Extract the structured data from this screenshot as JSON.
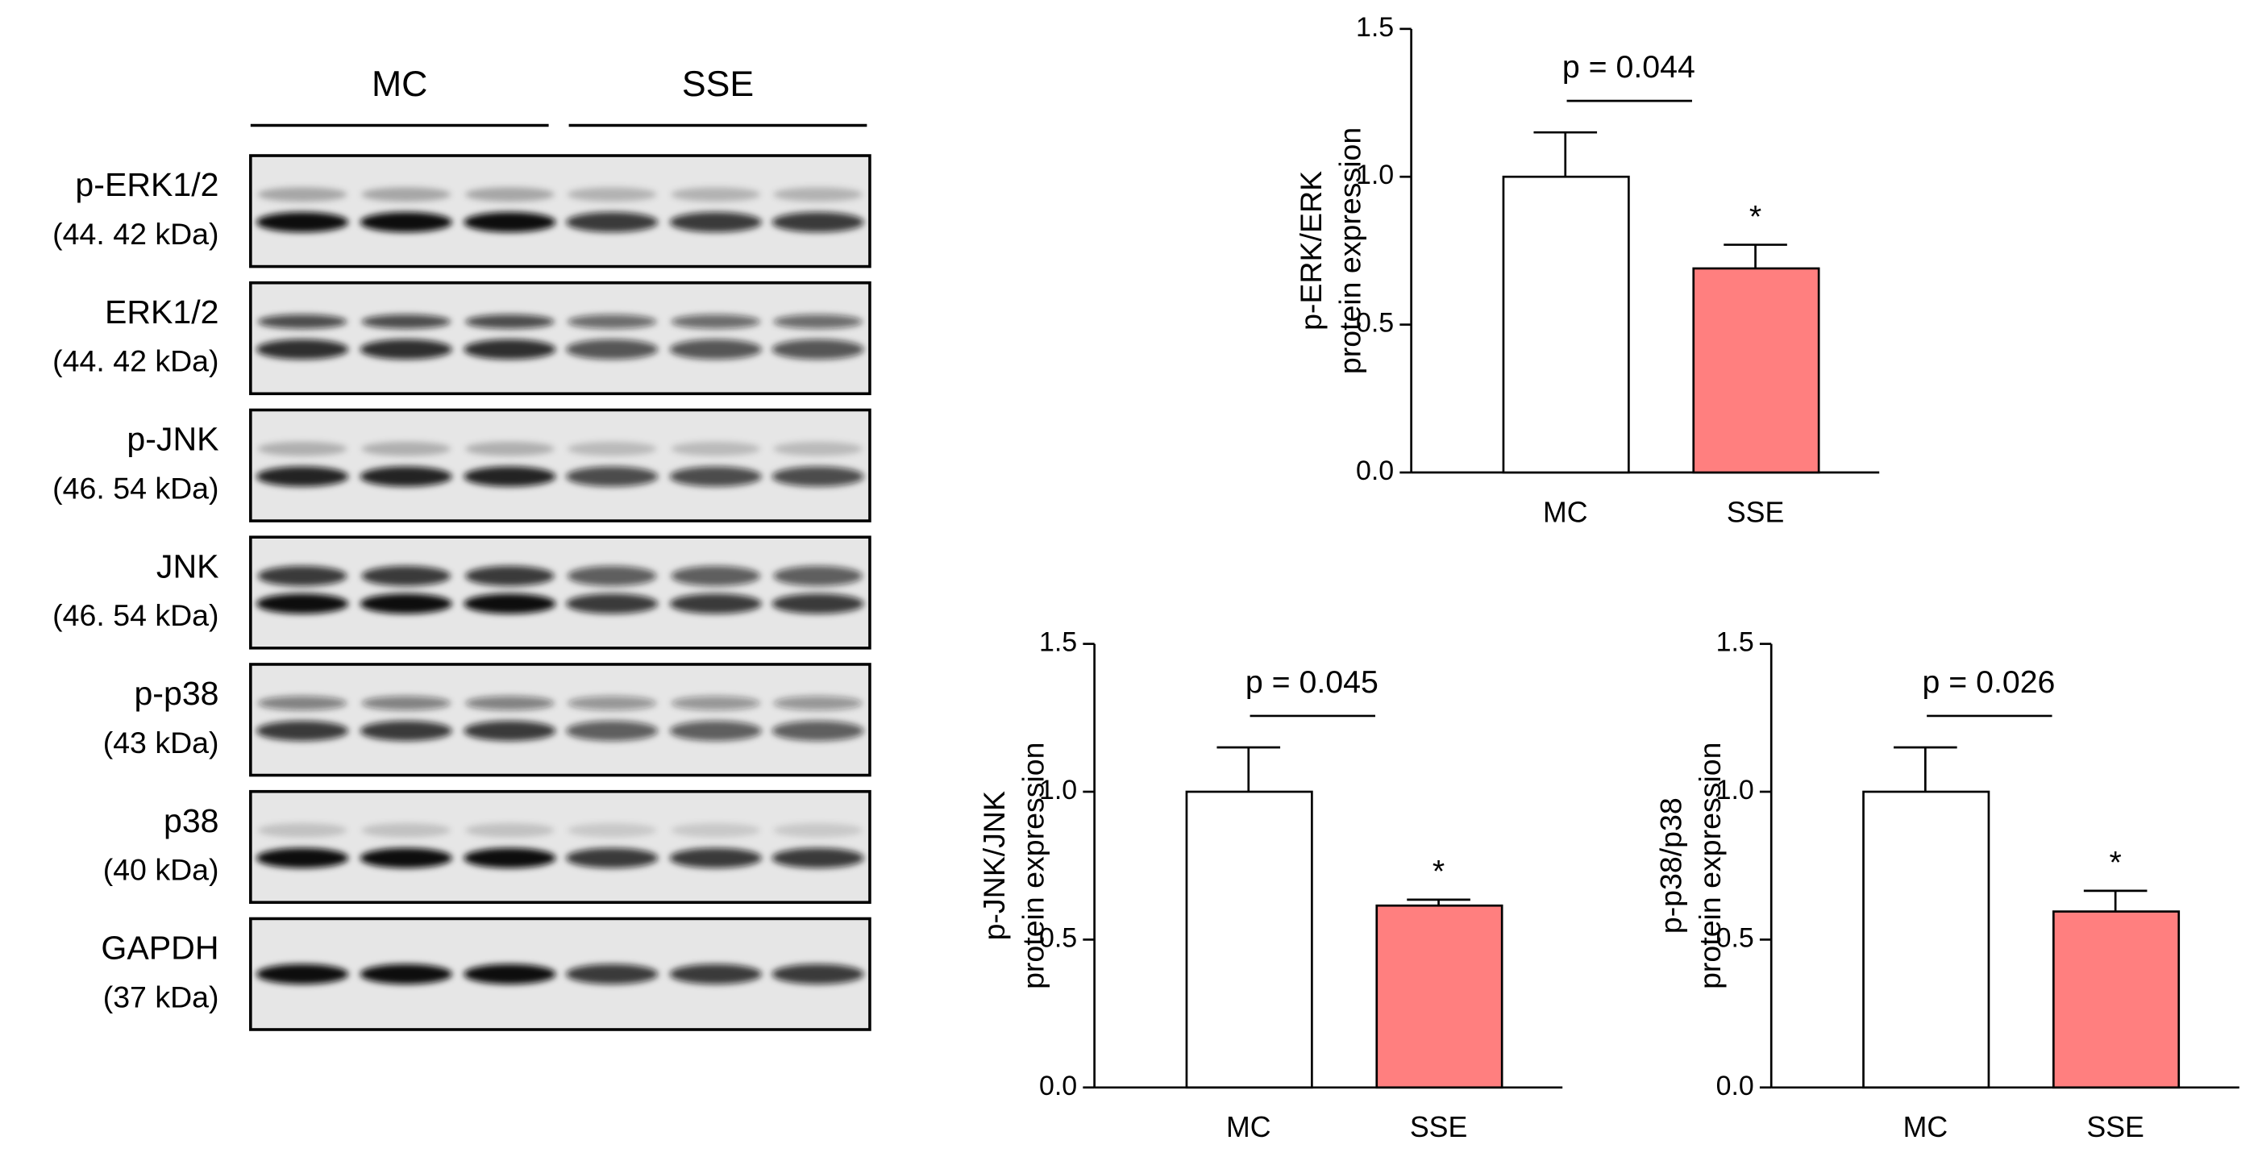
{
  "blot": {
    "groups": [
      "MC",
      "SSE"
    ],
    "rows": [
      {
        "name": "p-ERK1/2",
        "size": "(44. 42 kDa)"
      },
      {
        "name": "ERK1/2",
        "size": "(44. 42 kDa)"
      },
      {
        "name": "p-JNK",
        "size": "(46. 54 kDa)"
      },
      {
        "name": "JNK",
        "size": "(46. 54 kDa)"
      },
      {
        "name": "p-p38",
        "size": "(43 kDa)"
      },
      {
        "name": "p38",
        "size": "(40 kDa)"
      },
      {
        "name": "GAPDH",
        "size": "(37 kDa)"
      }
    ]
  },
  "chart_data": [
    {
      "type": "bar",
      "ylabel": [
        "p-ERK/ERK",
        "protein expression"
      ],
      "categories": [
        "MC",
        "SSE"
      ],
      "values": [
        1.0,
        0.69
      ],
      "errors": [
        0.15,
        0.08
      ],
      "colors": [
        "#ffffff",
        "#ff7f7f"
      ],
      "ylim": [
        0,
        1.5
      ],
      "yticks": [
        {
          "value": 0,
          "label": "0.0"
        },
        {
          "value": 0.5,
          "label": "0.5"
        },
        {
          "value": 1,
          "label": "1.0"
        },
        {
          "value": 1.5,
          "label": "1.5"
        }
      ],
      "annotation": "p = 0.044",
      "marker": "*"
    },
    {
      "type": "bar",
      "ylabel": [
        "p-JNK/JNK",
        "protein expression"
      ],
      "categories": [
        "MC",
        "SSE"
      ],
      "values": [
        1.0,
        0.615
      ],
      "errors": [
        0.15,
        0.02
      ],
      "colors": [
        "#ffffff",
        "#ff7f7f"
      ],
      "ylim": [
        0,
        1.5
      ],
      "yticks": [
        {
          "value": 0,
          "label": "0.0"
        },
        {
          "value": 0.5,
          "label": "0.5"
        },
        {
          "value": 1,
          "label": "1.0"
        },
        {
          "value": 1.5,
          "label": "1.5"
        }
      ],
      "annotation": "p = 0.045",
      "marker": "*"
    },
    {
      "type": "bar",
      "ylabel": [
        "p-p38/p38",
        "protein expression"
      ],
      "categories": [
        "MC",
        "SSE"
      ],
      "values": [
        1.0,
        0.595
      ],
      "errors": [
        0.15,
        0.07
      ],
      "colors": [
        "#ffffff",
        "#ff7f7f"
      ],
      "ylim": [
        0,
        1.5
      ],
      "yticks": [
        {
          "value": 0,
          "label": "0.0"
        },
        {
          "value": 0.5,
          "label": "0.5"
        },
        {
          "value": 1,
          "label": "1.0"
        },
        {
          "value": 1.5,
          "label": "1.5"
        }
      ],
      "annotation": "p = 0.026",
      "marker": "*"
    }
  ]
}
